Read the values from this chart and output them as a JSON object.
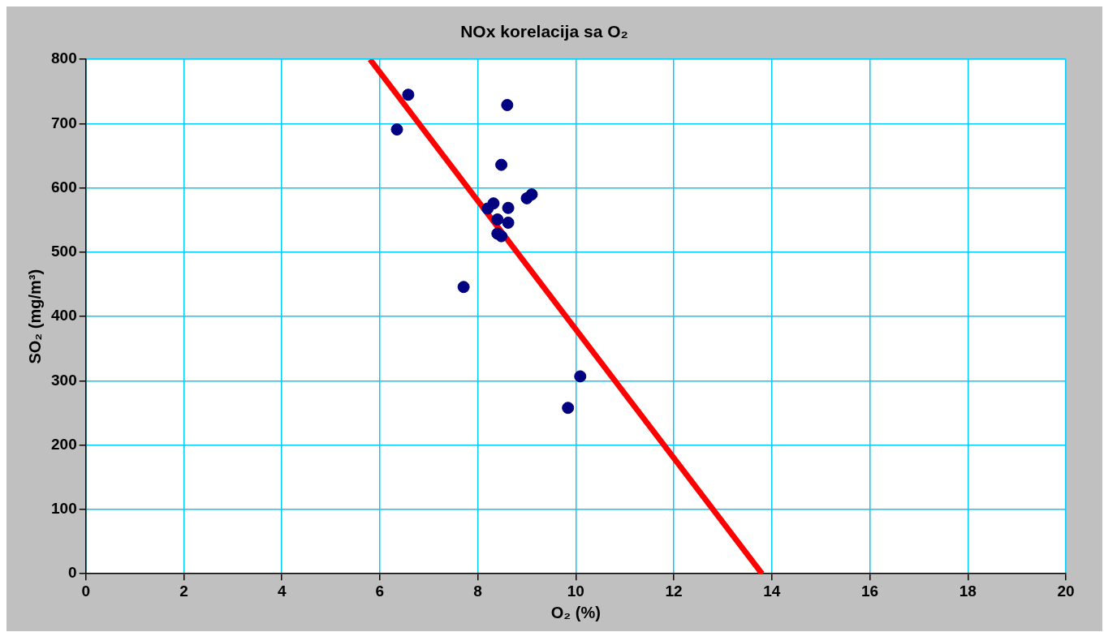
{
  "chart_data": {
    "type": "scatter",
    "title": "NOx korelacija sa O₂",
    "xlabel": "O₂ (%)",
    "ylabel": "SO₂ (mg/m³)",
    "xlim": [
      0,
      20
    ],
    "xticks": [
      0,
      2,
      4,
      6,
      8,
      10,
      12,
      14,
      16,
      18,
      20
    ],
    "ylim": [
      0,
      800
    ],
    "yticks": [
      0,
      100,
      200,
      300,
      400,
      500,
      600,
      700,
      800
    ],
    "grid": true,
    "legend": false,
    "series": [
      {
        "color": "#000080",
        "marker": "circle",
        "x": [
          6.58,
          8.6,
          6.35,
          8.48,
          9.1,
          9.0,
          8.32,
          8.2,
          8.62,
          8.4,
          8.62,
          8.4,
          8.48,
          7.71,
          10.09,
          9.84
        ],
        "values": [
          745,
          729,
          691,
          636,
          590,
          584,
          576,
          568,
          569,
          551,
          546,
          529,
          525,
          446,
          307,
          258
        ]
      },
      {
        "type": "line",
        "color": "#ff0000",
        "marker": "none",
        "x": [
          5.8,
          13.8
        ],
        "values": [
          800,
          0
        ]
      }
    ]
  }
}
